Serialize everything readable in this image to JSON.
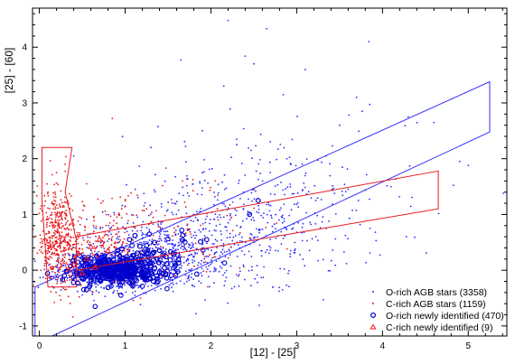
{
  "chart_data": {
    "type": "scatter",
    "title": "",
    "xlabel": "[12] - [25]",
    "ylabel": "[25] - [60]",
    "xlim": [
      -0.08,
      5.45
    ],
    "ylim": [
      -1.18,
      4.7
    ],
    "xticks": [
      0,
      1,
      2,
      3,
      4,
      5
    ],
    "yticks": [
      -1,
      0,
      1,
      2,
      3,
      4
    ],
    "xtick_labels": [
      "0",
      "1",
      "2",
      "3",
      "4",
      "5"
    ],
    "ytick_labels": [
      "-1",
      "0",
      "1",
      "2",
      "3",
      "4"
    ],
    "grid": false,
    "legend_position": "bottom-right",
    "colors": {
      "o_rich": "#2b2bff",
      "c_rich": "#e8191e",
      "o_region": "#3030ff",
      "c_region": "#e8191e",
      "frame": "#000000"
    },
    "series": [
      {
        "name": "O-rich AGB stars (3358)",
        "marker": "dot",
        "color": "#2b2bff",
        "note": "density clouds approximate",
        "clusters": [
          {
            "cx": 0.85,
            "cy": 0.0,
            "sx": 0.32,
            "sy": 0.18,
            "n": 700,
            "seed": 11
          },
          {
            "cx": 1.5,
            "cy": 0.3,
            "sx": 0.5,
            "sy": 0.35,
            "n": 520,
            "seed": 12
          },
          {
            "cx": 2.4,
            "cy": 0.9,
            "sx": 0.6,
            "sy": 0.6,
            "n": 320,
            "seed": 13
          },
          {
            "cx": 3.3,
            "cy": 1.4,
            "sx": 0.8,
            "sy": 0.8,
            "n": 110,
            "seed": 14
          }
        ],
        "points": [
          [
            2.2,
            4.48
          ],
          [
            2.65,
            4.33
          ],
          [
            3.84,
            4.1
          ],
          [
            2.4,
            3.84
          ],
          [
            1.65,
            3.77
          ],
          [
            2.5,
            3.7
          ],
          [
            3.1,
            3.6
          ],
          [
            2.15,
            3.3
          ],
          [
            4.3,
            2.75
          ],
          [
            4.6,
            2.65
          ],
          [
            1.9,
            2.5
          ],
          [
            2.3,
            2.35
          ],
          [
            3.5,
            2.6
          ],
          [
            4.9,
            1.95
          ],
          [
            5.0,
            1.88
          ],
          [
            4.1,
            1.5
          ],
          [
            1.15,
            1.3
          ],
          [
            1.0,
            1.15
          ],
          [
            1.3,
            2.2
          ],
          [
            0.4,
            2.05
          ]
        ]
      },
      {
        "name": "C-rich AGB stars (1159)",
        "marker": "dot",
        "color": "#e8191e",
        "note": "density clouds approximate",
        "clusters": [
          {
            "cx": 0.22,
            "cy": 0.55,
            "sx": 0.12,
            "sy": 0.45,
            "n": 420,
            "seed": 21
          },
          {
            "cx": 0.7,
            "cy": 0.45,
            "sx": 0.3,
            "sy": 0.35,
            "n": 220,
            "seed": 22
          },
          {
            "cx": 1.5,
            "cy": 0.6,
            "sx": 0.55,
            "sy": 0.4,
            "n": 110,
            "seed": 23
          }
        ],
        "points": [
          [
            0.85,
            2.72
          ],
          [
            0.3,
            1.9
          ],
          [
            0.2,
            1.75
          ],
          [
            0.55,
            1.55
          ],
          [
            2.05,
            1.6
          ],
          [
            2.5,
            1.45
          ],
          [
            1.25,
            1.1
          ],
          [
            0.1,
            1.4
          ]
        ]
      },
      {
        "name": "O-rich newly identified (470)",
        "marker": "open-circle",
        "color": "#0000cc",
        "note": "density clouds approximate",
        "clusters": [
          {
            "cx": 0.85,
            "cy": 0.0,
            "sx": 0.25,
            "sy": 0.12,
            "n": 360,
            "seed": 31
          },
          {
            "cx": 1.35,
            "cy": 0.2,
            "sx": 0.3,
            "sy": 0.22,
            "n": 80,
            "seed": 32
          }
        ],
        "points": [
          [
            2.45,
            1.0
          ],
          [
            2.55,
            1.25
          ],
          [
            1.05,
            0.55
          ],
          [
            0.65,
            -0.65
          ],
          [
            1.95,
            0.55
          ],
          [
            0.55,
            -0.35
          ],
          [
            0.95,
            -0.45
          ]
        ]
      },
      {
        "name": "C-rich newly identified (9)",
        "marker": "triangle",
        "color": "#e8191e",
        "points": [
          [
            0.45,
            0.3
          ],
          [
            0.55,
            0.2
          ],
          [
            0.6,
            0.42
          ],
          [
            0.4,
            0.1
          ],
          [
            0.7,
            0.55
          ],
          [
            0.35,
            0.0
          ],
          [
            0.5,
            -0.05
          ],
          [
            0.8,
            0.35
          ],
          [
            0.65,
            0.05
          ]
        ]
      }
    ],
    "regions": [
      {
        "name": "O-rich region",
        "color": "#3030ff",
        "vertices": [
          [
            -0.05,
            -1.2
          ],
          [
            -0.05,
            -0.3
          ],
          [
            5.25,
            3.38
          ],
          [
            5.25,
            2.48
          ],
          [
            0.15,
            -1.18
          ]
        ]
      },
      {
        "name": "C-rich region",
        "color": "#e8191e",
        "vertices": [
          [
            0.03,
            2.2
          ],
          [
            0.03,
            1.27
          ],
          [
            0.1,
            -0.3
          ],
          [
            0.43,
            -0.3
          ],
          [
            0.43,
            0.6
          ],
          [
            4.65,
            1.78
          ],
          [
            4.65,
            1.1
          ],
          [
            0.43,
            0.0
          ],
          [
            0.43,
            0.55
          ],
          [
            0.3,
            1.4
          ],
          [
            0.38,
            2.2
          ]
        ]
      }
    ]
  }
}
